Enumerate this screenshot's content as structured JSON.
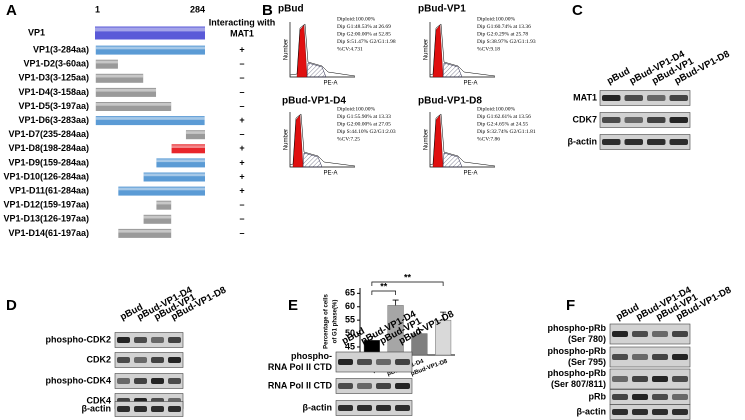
{
  "panels": {
    "a": "A",
    "b": "B",
    "c": "C",
    "d": "D",
    "e": "E",
    "f": "F"
  },
  "panel_a": {
    "scale_start": "1",
    "scale_end": "284",
    "header": [
      "Interacting with",
      "MAT1"
    ],
    "range": [
      1,
      284
    ],
    "rows": [
      {
        "label": "VP1",
        "start": 1,
        "end": 284,
        "color": "#5a5ad8",
        "sign": ""
      },
      {
        "label": "VP1(3-284aa)",
        "start": 3,
        "end": 284,
        "color": "#5b9bd5",
        "sign": "+"
      },
      {
        "label": "VP1-D2(3-60aa)",
        "start": 3,
        "end": 60,
        "color": "#9a9a9a",
        "sign": "–"
      },
      {
        "label": "VP1-D3(3-125aa)",
        "start": 3,
        "end": 125,
        "color": "#9a9a9a",
        "sign": "–"
      },
      {
        "label": "VP1-D4(3-158aa)",
        "start": 3,
        "end": 158,
        "color": "#9a9a9a",
        "sign": "–"
      },
      {
        "label": "VP1-D5(3-197aa)",
        "start": 3,
        "end": 197,
        "color": "#9a9a9a",
        "sign": "–"
      },
      {
        "label": "VP1-D6(3-283aa)",
        "start": 3,
        "end": 283,
        "color": "#5b9bd5",
        "sign": "+"
      },
      {
        "label": "VP1-D7(235-284aa)",
        "start": 235,
        "end": 284,
        "color": "#9a9a9a",
        "sign": "–"
      },
      {
        "label": "VP1-D8(198-284aa)",
        "start": 198,
        "end": 284,
        "color": "#e8262b",
        "sign": "+"
      },
      {
        "label": "VP1-D9(159-284aa)",
        "start": 159,
        "end": 284,
        "color": "#5b9bd5",
        "sign": "+"
      },
      {
        "label": "VP1-D10(126-284aa)",
        "start": 126,
        "end": 284,
        "color": "#5b9bd5",
        "sign": "+"
      },
      {
        "label": "VP1-D11(61-284aa)",
        "start": 61,
        "end": 284,
        "color": "#5b9bd5",
        "sign": "+"
      },
      {
        "label": "VP1-D12(159-197aa)",
        "start": 159,
        "end": 197,
        "color": "#9a9a9a",
        "sign": "–"
      },
      {
        "label": "VP1-D13(126-197aa)",
        "start": 126,
        "end": 197,
        "color": "#9a9a9a",
        "sign": "–"
      },
      {
        "label": "VP1-D14(61-197aa)",
        "start": 61,
        "end": 197,
        "color": "#9a9a9a",
        "sign": "–"
      }
    ]
  },
  "flow": {
    "x_label": "PE-A",
    "y_label": "Number",
    "plots": [
      {
        "title": "pBud",
        "stats": [
          "Diploid:100.00%",
          "Dip G1:48.53% at 26.69",
          "Dip G2:00.00% at 52.85",
          "Dip S:51.47%    G2/G1:1.98",
          "%CV:4.731"
        ]
      },
      {
        "title": "pBud-VP1",
        "stats": [
          "Diploid:100.00%",
          "Dip G1:60.74% at 13.36",
          "Dip G2:0.29% at 25.78",
          "Dip S:38.97%    G2/G1:1.93",
          "%CV:9.18"
        ]
      },
      {
        "title": "pBud-VP1-D4",
        "stats": [
          "Diploid:100.00%",
          "Dip G1:55.90% at 13.33",
          "Dip G2:00.00% at 27.05",
          "Dip S:44.10%    G2/G1:2.03",
          "%CV:7.25"
        ]
      },
      {
        "title": "pBud-VP1-D8",
        "stats": [
          "Diploid:100.00%",
          "Dip G1:62.61% at 13.56",
          "Dip G2:4.65% at 24.55",
          "Dip S:32.74%    G2/G1:1.81",
          "%CV:7.86"
        ]
      }
    ]
  },
  "chart_data": {
    "type": "bar",
    "y_label": [
      "Percentage of cells",
      "of G1 phase(%)"
    ],
    "categories": [
      "pBud",
      "pBud-VP1",
      "pBud-VP1-D4",
      "pBud-VP1-D8"
    ],
    "values": [
      47.5,
      60.5,
      50,
      55
    ],
    "errors": [
      1.5,
      2,
      1.5,
      3
    ],
    "colors": [
      "#000000",
      "#a6a6a6",
      "#7f7f7f",
      "#d9d9d9"
    ],
    "ylim": [
      42,
      67
    ],
    "yticks": [
      45,
      50,
      55,
      60,
      65
    ],
    "annotations": [
      "**",
      "**"
    ]
  },
  "blots": {
    "c": {
      "lanes": [
        "pBud",
        "pBud-VP1-D4",
        "pBud-VP1",
        "pBud-VP1-D8"
      ],
      "rows": [
        [
          "MAT1"
        ],
        [
          "CDK7"
        ],
        [
          "β-actin"
        ]
      ]
    },
    "d": {
      "lanes": [
        "pBud",
        "pBud-VP1-D4",
        "pBud-VP1",
        "pBud-VP1-D8"
      ],
      "rows": [
        [
          "phospho-CDK2"
        ],
        [
          "CDK2"
        ],
        [
          "phospho-CDK4"
        ],
        [
          "CDK4"
        ],
        [
          "β-actin"
        ]
      ]
    },
    "e": {
      "lanes": [
        "pBud",
        "pBud-VP1-D4",
        "pBud-VP1",
        "pBud-VP1-D8"
      ],
      "rows": [
        [
          "phospho-",
          "RNA Pol II CTD"
        ],
        [
          "RNA Pol II CTD"
        ],
        [
          "β-actin"
        ]
      ]
    },
    "f": {
      "lanes": [
        "pBud",
        "pBud-VP1-D4",
        "pBud-VP1",
        "pBud-VP1-D8"
      ],
      "rows": [
        [
          "phospho-pRb",
          "(Ser 780)"
        ],
        [
          "phospho-pRb",
          "(Ser 795)"
        ],
        [
          "phospho-pRb",
          "(Ser 807/811)"
        ],
        [
          "pRb"
        ],
        [
          "β-actin"
        ]
      ]
    }
  }
}
